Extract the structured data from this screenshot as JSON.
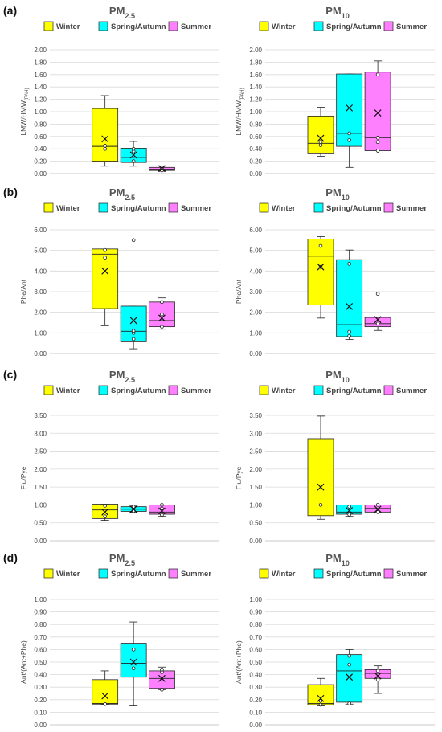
{
  "chart_data": [
    {
      "panel": "(a)",
      "type": "box",
      "title": "PM",
      "title_sub": "2.5",
      "ylabel": "LMW/HMW",
      "ylabel_sub": "(PAH)",
      "ylim": [
        0,
        2
      ],
      "yticks": [
        "0.00",
        "0.20",
        "0.40",
        "0.60",
        "0.80",
        "1.00",
        "1.20",
        "1.40",
        "1.60",
        "1.80",
        "2.00"
      ],
      "grid": true,
      "legend": [
        "Winter",
        "Spring/Autumn",
        "Summer"
      ],
      "legend_position": "top",
      "boxes": [
        {
          "series": "Winter",
          "color": "#ffff00",
          "min": 0.12,
          "q1": 0.2,
          "median": 0.44,
          "q3": 1.05,
          "max": 1.26,
          "mean": 0.56,
          "points": [
            0.4,
            0.45
          ]
        },
        {
          "series": "Spring/Autumn",
          "color": "#00ffff",
          "min": 0.12,
          "q1": 0.18,
          "median": 0.26,
          "q3": 0.41,
          "max": 0.52,
          "mean": 0.3,
          "points": [
            0.2,
            0.36,
            0.4
          ]
        },
        {
          "series": "Summer",
          "color": "#ff80ff",
          "min": 0.04,
          "q1": 0.05,
          "median": 0.07,
          "q3": 0.1,
          "max": 0.1,
          "mean": 0.08,
          "points": [
            0.05,
            0.08
          ]
        }
      ]
    },
    {
      "panel": "",
      "type": "box",
      "title": "PM",
      "title_sub": "10",
      "ylabel": "LMW/HMW",
      "ylabel_sub": "(PAH)",
      "ylim": [
        0,
        2
      ],
      "yticks": [
        "0.00",
        "0.20",
        "0.40",
        "0.60",
        "0.80",
        "1.00",
        "1.20",
        "1.40",
        "1.60",
        "1.80",
        "2.00"
      ],
      "grid": true,
      "legend": [
        "Winter",
        "Spring/Autumn",
        "Summer"
      ],
      "legend_position": "top",
      "boxes": [
        {
          "series": "Winter",
          "color": "#ffff00",
          "min": 0.28,
          "q1": 0.32,
          "median": 0.49,
          "q3": 0.93,
          "max": 1.07,
          "mean": 0.57,
          "points": [
            0.46,
            0.51
          ]
        },
        {
          "series": "Spring/Autumn",
          "color": "#00ffff",
          "min": 0.1,
          "q1": 0.44,
          "median": 0.65,
          "q3": 1.61,
          "max": 1.61,
          "mean": 1.06,
          "points": [
            0.54,
            0.65
          ]
        },
        {
          "series": "Summer",
          "color": "#ff80ff",
          "min": 0.33,
          "q1": 0.37,
          "median": 0.58,
          "q3": 1.64,
          "max": 1.82,
          "mean": 0.98,
          "points": [
            0.37,
            0.51,
            0.58,
            1.6
          ]
        }
      ]
    },
    {
      "panel": "(b)",
      "type": "box",
      "title": "PM",
      "title_sub": "2.5",
      "ylabel": "Phe/Ant",
      "ylabel_sub": "",
      "ylim": [
        0,
        6
      ],
      "yticks": [
        "0.00",
        "1.00",
        "2.00",
        "3.00",
        "4.00",
        "5.00",
        "6.00"
      ],
      "grid": true,
      "legend": [
        "Winter",
        "Spring/Autumn",
        "Summer"
      ],
      "legend_position": "top",
      "boxes": [
        {
          "series": "Winter",
          "color": "#ffff00",
          "min": 1.35,
          "q1": 2.18,
          "median": 4.82,
          "q3": 5.07,
          "max": 5.07,
          "mean": 4.0,
          "points": [
            4.65,
            5.02
          ]
        },
        {
          "series": "Spring/Autumn",
          "color": "#00ffff",
          "min": 0.23,
          "q1": 0.57,
          "median": 1.08,
          "q3": 2.3,
          "max": 2.3,
          "mean": 1.6,
          "points": [
            0.7,
            1.0,
            1.1,
            5.5
          ]
        },
        {
          "series": "Summer",
          "color": "#ff80ff",
          "min": 1.18,
          "q1": 1.3,
          "median": 1.6,
          "q3": 2.5,
          "max": 2.7,
          "mean": 1.72,
          "points": [
            1.3,
            1.9,
            2.5
          ]
        }
      ]
    },
    {
      "panel": "",
      "type": "box",
      "title": "PM",
      "title_sub": "10",
      "ylabel": "Phe/Ant",
      "ylabel_sub": "",
      "ylim": [
        0,
        6
      ],
      "yticks": [
        "0.00",
        "1.00",
        "2.00",
        "3.00",
        "4.00",
        "5.00",
        "6.00"
      ],
      "grid": true,
      "legend": [
        "Winter",
        "Spring/Autumn",
        "Summer"
      ],
      "legend_position": "top",
      "boxes": [
        {
          "series": "Winter",
          "color": "#ffff00",
          "min": 1.72,
          "q1": 2.36,
          "median": 4.72,
          "q3": 5.55,
          "max": 5.67,
          "mean": 4.2,
          "points": [
            4.2,
            5.22
          ]
        },
        {
          "series": "Spring/Autumn",
          "color": "#00ffff",
          "min": 0.68,
          "q1": 0.82,
          "median": 1.4,
          "q3": 4.55,
          "max": 5.02,
          "mean": 2.28,
          "points": [
            0.85,
            1.05,
            4.35
          ]
        },
        {
          "series": "Summer",
          "color": "#ff80ff",
          "min": 1.12,
          "q1": 1.3,
          "median": 1.45,
          "q3": 1.75,
          "max": 1.75,
          "mean": 1.65,
          "points": [
            1.45,
            2.9
          ]
        }
      ]
    },
    {
      "panel": "(c)",
      "type": "box",
      "title": "PM",
      "title_sub": "2.5",
      "ylabel": "Flu/Pye",
      "ylabel_sub": "",
      "ylim": [
        0,
        3.5
      ],
      "yticks": [
        "0.00",
        "0.50",
        "1.00",
        "1.50",
        "2.00",
        "2.50",
        "3.00",
        "3.50"
      ],
      "grid": true,
      "legend": [
        "Winter",
        "Spring/Autumn",
        "Summer"
      ],
      "legend_position": "top",
      "boxes": [
        {
          "series": "Winter",
          "color": "#ffff00",
          "min": 0.57,
          "q1": 0.62,
          "median": 0.86,
          "q3": 1.02,
          "max": 1.02,
          "mean": 0.8,
          "points": [
            0.68,
            0.98
          ]
        },
        {
          "series": "Spring/Autumn",
          "color": "#00ffff",
          "min": 0.79,
          "q1": 0.82,
          "median": 0.88,
          "q3": 0.95,
          "max": 0.97,
          "mean": 0.88,
          "points": [
            0.83,
            0.95
          ]
        },
        {
          "series": "Summer",
          "color": "#ff80ff",
          "min": 0.68,
          "q1": 0.74,
          "median": 0.8,
          "q3": 1.0,
          "max": 1.0,
          "mean": 0.83,
          "points": [
            0.72,
            0.9,
            1.0
          ]
        }
      ]
    },
    {
      "panel": "",
      "type": "box",
      "title": "PM",
      "title_sub": "10",
      "ylabel": "Flu/Pye",
      "ylabel_sub": "",
      "ylim": [
        0,
        3.5
      ],
      "yticks": [
        "0.00",
        "0.50",
        "1.00",
        "1.50",
        "2.00",
        "2.50",
        "3.00",
        "3.50"
      ],
      "grid": true,
      "legend": [
        "Winter",
        "Spring/Autumn",
        "Summer"
      ],
      "legend_position": "top",
      "boxes": [
        {
          "series": "Winter",
          "color": "#ffff00",
          "min": 0.6,
          "q1": 0.7,
          "median": 1.0,
          "q3": 2.85,
          "max": 3.48,
          "mean": 1.5,
          "points": [
            1.0
          ]
        },
        {
          "series": "Spring/Autumn",
          "color": "#00ffff",
          "min": 0.68,
          "q1": 0.74,
          "median": 0.8,
          "q3": 1.0,
          "max": 1.0,
          "mean": 0.84,
          "points": [
            0.73,
            0.95
          ]
        },
        {
          "series": "Summer",
          "color": "#ff80ff",
          "min": 0.78,
          "q1": 0.8,
          "median": 0.9,
          "q3": 1.0,
          "max": 1.0,
          "mean": 0.88,
          "points": [
            0.8,
            1.0
          ]
        }
      ]
    },
    {
      "panel": "(d)",
      "type": "box",
      "title": "PM",
      "title_sub": "2.5",
      "ylabel": "Ant/(Ant+Phe)",
      "ylabel_sub": "",
      "ylim": [
        0,
        1
      ],
      "yticks": [
        "0.00",
        "0.10",
        "0.20",
        "0.30",
        "0.40",
        "0.50",
        "0.60",
        "0.70",
        "0.80",
        "0.90",
        "1.00"
      ],
      "grid": true,
      "legend": [
        "Winter",
        "Spring/Autumn",
        "Summer"
      ],
      "legend_position": "top",
      "boxes": [
        {
          "series": "Winter",
          "color": "#ffff00",
          "min": 0.16,
          "q1": 0.165,
          "median": 0.17,
          "q3": 0.36,
          "max": 0.43,
          "mean": 0.23,
          "points": [
            0.165
          ]
        },
        {
          "series": "Spring/Autumn",
          "color": "#00ffff",
          "min": 0.15,
          "q1": 0.38,
          "median": 0.49,
          "q3": 0.65,
          "max": 0.82,
          "mean": 0.5,
          "points": [
            0.45,
            0.6
          ]
        },
        {
          "series": "Summer",
          "color": "#ff80ff",
          "min": 0.28,
          "q1": 0.29,
          "median": 0.37,
          "q3": 0.43,
          "max": 0.46,
          "mean": 0.37,
          "points": [
            0.28,
            0.42,
            0.44
          ]
        }
      ]
    },
    {
      "panel": "",
      "type": "box",
      "title": "PM",
      "title_sub": "10",
      "ylabel": "Ant/(Ant+Phe)",
      "ylabel_sub": "",
      "ylim": [
        0,
        1
      ],
      "yticks": [
        "0.00",
        "0.10",
        "0.20",
        "0.30",
        "0.40",
        "0.50",
        "0.60",
        "0.70",
        "0.80",
        "0.90",
        "1.00"
      ],
      "grid": true,
      "legend": [
        "Winter",
        "Spring/Autumn",
        "Summer"
      ],
      "legend_position": "top",
      "boxes": [
        {
          "series": "Winter",
          "color": "#ffff00",
          "min": 0.15,
          "q1": 0.16,
          "median": 0.17,
          "q3": 0.32,
          "max": 0.37,
          "mean": 0.21,
          "points": [
            0.16,
            0.19
          ]
        },
        {
          "series": "Spring/Autumn",
          "color": "#00ffff",
          "min": 0.165,
          "q1": 0.18,
          "median": 0.43,
          "q3": 0.56,
          "max": 0.6,
          "mean": 0.38,
          "points": [
            0.17,
            0.48,
            0.55
          ]
        },
        {
          "series": "Summer",
          "color": "#ff80ff",
          "min": 0.25,
          "q1": 0.37,
          "median": 0.41,
          "q3": 0.44,
          "max": 0.47,
          "mean": 0.39,
          "points": [
            0.36,
            0.43
          ]
        }
      ]
    }
  ]
}
